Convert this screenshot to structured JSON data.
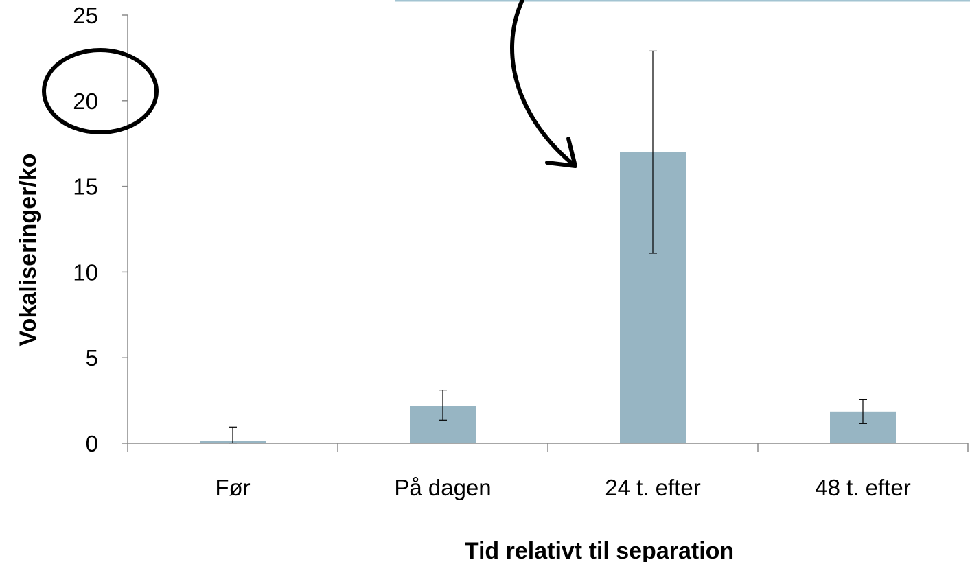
{
  "colors": {
    "bar": "#97b5c3",
    "axis": "#8a8a8a",
    "annotation": "#000000",
    "callout_line": "#a3c4d2"
  },
  "chart_data": {
    "type": "bar",
    "categories": [
      "Før",
      "På dagen",
      "24 t. efter",
      "48 t. efter"
    ],
    "values": [
      0.15,
      2.2,
      17.0,
      1.85
    ],
    "error_low": [
      0.0,
      1.35,
      11.1,
      1.15
    ],
    "error_high": [
      0.95,
      3.1,
      22.9,
      2.55
    ],
    "xlabel": "Tid relativt til separation",
    "ylabel": "Vokaliseringer/ko",
    "ylim": [
      0,
      25
    ],
    "yticks": [
      "0",
      "5",
      "10",
      "15",
      "20",
      "25"
    ],
    "grid": false,
    "annotations": [
      {
        "kind": "circle",
        "target": "y-tick-20"
      },
      {
        "kind": "curved-arrow",
        "target": "bar-24-t-efter"
      }
    ]
  }
}
